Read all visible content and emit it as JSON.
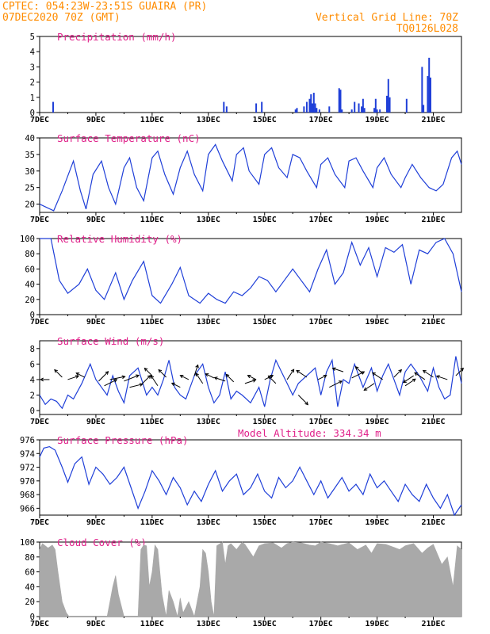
{
  "header": {
    "line1": "CPTEC:   054:23W-23:51S   GUAIRA (PR)",
    "line2": "07DEC2020 70Z (GMT)",
    "grid_label": "Vertical Grid Line: 70Z",
    "code": "TQ0126L028"
  },
  "colors": {
    "header": "#ff8c00",
    "title": "#e0218a",
    "line": "#1f3fd8",
    "cloud": "#a9a9a9"
  },
  "chart_data": [
    {
      "id": "precip",
      "type": "bar",
      "title": "Precipitation (mm/h)",
      "ylim": [
        0,
        5
      ],
      "yticks": [
        "0",
        "1",
        "2",
        "3",
        "4",
        "5"
      ],
      "xlim": [
        0,
        15
      ],
      "xticks": [
        "7DEC",
        "9DEC",
        "11DEC",
        "13DEC",
        "15DEC",
        "17DEC",
        "19DEC",
        "21DEC"
      ],
      "x": [
        0.48,
        6.55,
        6.65,
        7.7,
        7.9,
        9.1,
        9.15,
        9.4,
        9.5,
        9.6,
        9.65,
        9.7,
        9.75,
        9.8,
        9.85,
        9.95,
        10.3,
        10.65,
        10.7,
        10.75,
        11.1,
        11.2,
        11.35,
        11.45,
        11.5,
        11.55,
        11.9,
        11.95,
        12.0,
        12.1,
        12.35,
        12.4,
        12.45,
        13.05,
        13.6,
        13.65,
        13.8,
        13.85,
        13.9
      ],
      "values": [
        0.7,
        0.7,
        0.4,
        0.6,
        0.7,
        0.2,
        0.3,
        0.4,
        0.7,
        0.9,
        1.2,
        0.6,
        1.3,
        0.6,
        0.3,
        0.2,
        0.4,
        1.6,
        1.5,
        0.2,
        0.2,
        0.7,
        0.6,
        0.4,
        0.9,
        0.3,
        0.3,
        0.9,
        0.2,
        0.2,
        1.1,
        2.2,
        1.0,
        0.9,
        3.0,
        0.5,
        2.4,
        3.6,
        2.3
      ]
    },
    {
      "id": "temp",
      "type": "line",
      "title": "Surface Temperature (nC)",
      "ylim": [
        17.5,
        40
      ],
      "yticks": [
        "20",
        "25",
        "30",
        "35",
        "40"
      ],
      "xlim": [
        0,
        15
      ],
      "xticks": [
        "7DEC",
        "9DEC",
        "11DEC",
        "13DEC",
        "15DEC",
        "17DEC",
        "19DEC",
        "21DEC"
      ],
      "x": [
        0.0,
        0.5,
        0.8,
        1.2,
        1.45,
        1.65,
        1.9,
        2.2,
        2.45,
        2.7,
        3.0,
        3.2,
        3.45,
        3.7,
        4.0,
        4.2,
        4.45,
        4.75,
        5.0,
        5.25,
        5.5,
        5.8,
        6.0,
        6.25,
        6.5,
        6.85,
        7.0,
        7.25,
        7.45,
        7.8,
        8.0,
        8.25,
        8.5,
        8.8,
        9.0,
        9.25,
        9.5,
        9.85,
        10.0,
        10.25,
        10.5,
        10.85,
        11.0,
        11.25,
        11.5,
        11.85,
        12.0,
        12.25,
        12.5,
        12.85,
        13.0,
        13.25,
        13.55,
        13.85,
        14.1,
        14.35,
        14.65,
        14.85,
        15.0
      ],
      "values": [
        20,
        18,
        24,
        33,
        24,
        18.5,
        29,
        33,
        25,
        20,
        31,
        34,
        25,
        21,
        34,
        36,
        29,
        23,
        31,
        36,
        29,
        24,
        35,
        38,
        33,
        27,
        35,
        37,
        30,
        26,
        35,
        37,
        31,
        28,
        35,
        34,
        30,
        25,
        32,
        34,
        29,
        25,
        33,
        34,
        30,
        25,
        31,
        34,
        29,
        25,
        28,
        32,
        28,
        25,
        24,
        26,
        34,
        36,
        32
      ]
    },
    {
      "id": "rh",
      "type": "line",
      "title": "Relative Humidity (%)",
      "ylim": [
        0,
        100
      ],
      "yticks": [
        "0",
        "20",
        "40",
        "60",
        "80",
        "100"
      ],
      "xlim": [
        0,
        15
      ],
      "xticks": [
        "7DEC",
        "9DEC",
        "11DEC",
        "13DEC",
        "15DEC",
        "17DEC",
        "19DEC",
        "21DEC"
      ],
      "x": [
        0.0,
        0.4,
        0.7,
        1.0,
        1.4,
        1.7,
        2.0,
        2.3,
        2.7,
        3.0,
        3.3,
        3.7,
        4.0,
        4.3,
        4.7,
        5.0,
        5.3,
        5.7,
        6.0,
        6.3,
        6.6,
        6.9,
        7.2,
        7.5,
        7.8,
        8.1,
        8.4,
        8.7,
        9.0,
        9.3,
        9.6,
        9.9,
        10.2,
        10.5,
        10.8,
        11.1,
        11.4,
        11.7,
        12.0,
        12.3,
        12.6,
        12.9,
        13.2,
        13.5,
        13.8,
        14.1,
        14.4,
        14.7,
        15.0
      ],
      "values": [
        100,
        100,
        45,
        28,
        40,
        60,
        32,
        20,
        55,
        20,
        45,
        70,
        25,
        15,
        40,
        62,
        25,
        15,
        28,
        20,
        15,
        30,
        25,
        35,
        50,
        45,
        30,
        45,
        60,
        45,
        30,
        60,
        85,
        40,
        55,
        95,
        65,
        88,
        50,
        88,
        82,
        92,
        40,
        85,
        80,
        95,
        100,
        80,
        30
      ]
    },
    {
      "id": "wind",
      "type": "line",
      "title": "Surface Wind (m/s)",
      "ylim": [
        -0.5,
        9
      ],
      "yticks": [
        "0",
        "2",
        "4",
        "6",
        "8"
      ],
      "xlim": [
        0,
        15
      ],
      "xticks": [
        "7DEC",
        "9DEC",
        "11DEC",
        "13DEC",
        "15DEC",
        "17DEC",
        "19DEC",
        "21DEC"
      ],
      "x": [
        0.0,
        0.2,
        0.4,
        0.6,
        0.8,
        1.0,
        1.2,
        1.5,
        1.8,
        2.0,
        2.2,
        2.4,
        2.6,
        2.8,
        3.0,
        3.2,
        3.5,
        3.8,
        4.0,
        4.2,
        4.4,
        4.6,
        4.8,
        5.0,
        5.2,
        5.5,
        5.8,
        6.0,
        6.2,
        6.4,
        6.6,
        6.8,
        7.0,
        7.2,
        7.5,
        7.8,
        8.0,
        8.2,
        8.4,
        8.6,
        8.8,
        9.0,
        9.2,
        9.5,
        9.8,
        10.0,
        10.2,
        10.4,
        10.6,
        10.8,
        11.0,
        11.2,
        11.5,
        11.8,
        12.0,
        12.2,
        12.4,
        12.6,
        12.8,
        13.0,
        13.2,
        13.5,
        13.8,
        14.0,
        14.2,
        14.4,
        14.6,
        14.8,
        15.0
      ],
      "values": [
        2.0,
        0.8,
        1.5,
        1.2,
        0.3,
        2.0,
        1.5,
        3.5,
        6.0,
        4.0,
        3.0,
        2.0,
        4.5,
        2.5,
        1.0,
        4.5,
        5.5,
        2.0,
        3.0,
        2.0,
        4.0,
        6.5,
        3.0,
        2.0,
        1.5,
        4.5,
        6.0,
        3.0,
        1.0,
        2.0,
        5.0,
        1.5,
        2.5,
        2.0,
        1.0,
        3.0,
        0.5,
        4.0,
        6.5,
        5.0,
        3.5,
        2.0,
        3.5,
        4.5,
        5.5,
        2.0,
        5.0,
        6.5,
        0.5,
        4.0,
        3.5,
        6.0,
        3.0,
        5.5,
        2.5,
        4.5,
        6.0,
        4.0,
        2.0,
        5.0,
        6.0,
        4.5,
        2.5,
        5.5,
        3.0,
        1.5,
        2.0,
        7.0,
        3.5
      ]
    },
    {
      "id": "pressure",
      "type": "line",
      "title": "Surface Pressure (hPa)",
      "annotation": "Model Altitude: 334.34 m",
      "ylim": [
        965,
        976
      ],
      "yticks": [
        "966",
        "968",
        "970",
        "972",
        "974",
        "976"
      ],
      "xlim": [
        0,
        15
      ],
      "xticks": [
        "7DEC",
        "9DEC",
        "11DEC",
        "13DEC",
        "15DEC",
        "17DEC",
        "19DEC",
        "21DEC"
      ],
      "x": [
        0.0,
        0.15,
        0.35,
        0.55,
        0.8,
        1.0,
        1.25,
        1.5,
        1.75,
        2.0,
        2.25,
        2.5,
        2.75,
        3.0,
        3.25,
        3.5,
        3.75,
        4.0,
        4.25,
        4.5,
        4.75,
        5.0,
        5.25,
        5.5,
        5.75,
        6.0,
        6.25,
        6.5,
        6.75,
        7.0,
        7.25,
        7.5,
        7.75,
        8.0,
        8.25,
        8.5,
        8.75,
        9.0,
        9.25,
        9.5,
        9.75,
        10.0,
        10.25,
        10.5,
        10.75,
        11.0,
        11.25,
        11.5,
        11.75,
        12.0,
        12.25,
        12.5,
        12.75,
        13.0,
        13.25,
        13.5,
        13.75,
        14.0,
        14.25,
        14.5,
        14.75,
        15.0
      ],
      "values": [
        973.5,
        974.8,
        975.0,
        974.5,
        972.0,
        969.8,
        972.5,
        973.5,
        969.5,
        972.0,
        971.0,
        969.5,
        970.5,
        972.0,
        969.0,
        966.0,
        968.5,
        971.5,
        970.0,
        968.0,
        970.5,
        969.0,
        966.5,
        968.5,
        967.0,
        969.5,
        971.5,
        968.5,
        970.0,
        971.0,
        968.0,
        969.0,
        971.0,
        968.5,
        967.5,
        970.5,
        969.0,
        970.0,
        972.0,
        970.0,
        968.0,
        970.0,
        967.5,
        969.0,
        970.5,
        968.5,
        969.5,
        968.0,
        971.0,
        969.0,
        970.0,
        968.5,
        967.0,
        969.5,
        968.0,
        967.0,
        969.5,
        967.5,
        966.0,
        968.0,
        965.0,
        966.5
      ]
    },
    {
      "id": "cloud",
      "type": "area",
      "title": "Cloud Cover (%)",
      "ylim": [
        0,
        100
      ],
      "yticks": [
        "0",
        "20",
        "40",
        "60",
        "80",
        "100"
      ],
      "xlim": [
        0,
        15
      ],
      "xticks": [
        "7DEC",
        "9DEC",
        "11DEC",
        "13DEC",
        "15DEC",
        "17DEC",
        "19DEC",
        "21DEC"
      ],
      "x": [
        0.0,
        0.1,
        0.2,
        0.3,
        0.45,
        0.55,
        0.65,
        0.8,
        0.95,
        1.05,
        1.2,
        1.35,
        2.4,
        2.5,
        2.6,
        2.7,
        2.8,
        3.0,
        3.1,
        3.5,
        3.6,
        3.7,
        3.8,
        3.9,
        4.0,
        4.1,
        4.2,
        4.35,
        4.5,
        4.6,
        4.75,
        4.9,
        5.0,
        5.1,
        5.3,
        5.5,
        5.7,
        5.8,
        5.9,
        6.0,
        6.1,
        6.2,
        6.3,
        6.5,
        6.6,
        6.7,
        6.8,
        7.0,
        7.2,
        7.3,
        7.6,
        7.8,
        8.0,
        8.3,
        8.6,
        8.8,
        9.0,
        9.3,
        9.6,
        9.8,
        10.0,
        10.3,
        10.6,
        10.8,
        11.0,
        11.3,
        11.6,
        11.8,
        12.0,
        12.3,
        12.6,
        12.8,
        13.0,
        13.3,
        13.6,
        13.8,
        14.0,
        14.3,
        14.5,
        14.7,
        14.85,
        15.0
      ],
      "values": [
        90,
        98,
        95,
        92,
        96,
        90,
        60,
        20,
        5,
        0,
        0,
        0,
        0,
        20,
        40,
        55,
        30,
        0,
        0,
        0,
        90,
        96,
        95,
        40,
        60,
        96,
        90,
        30,
        0,
        35,
        20,
        0,
        25,
        5,
        20,
        0,
        40,
        90,
        85,
        60,
        20,
        0,
        95,
        100,
        70,
        95,
        98,
        90,
        100,
        97,
        80,
        95,
        98,
        99,
        92,
        98,
        100,
        99,
        96,
        95,
        100,
        98,
        95,
        97,
        99,
        90,
        96,
        85,
        98,
        97,
        93,
        90,
        95,
        98,
        85,
        92,
        97,
        70,
        80,
        40,
        95,
        90
      ]
    }
  ],
  "wind_arrows": {
    "x": [
      0.35,
      0.8,
      1.0,
      1.6,
      2.1,
      2.3,
      2.5,
      3.0,
      3.2,
      3.6,
      4.0,
      4.2,
      4.5,
      5.0,
      5.3,
      5.5,
      5.8,
      6.2,
      6.6,
      6.9,
      7.3,
      7.7,
      8.0,
      8.4,
      8.8,
      9.2,
      9.5,
      9.9,
      10.3,
      10.8,
      11.1,
      11.5,
      11.9,
      12.2,
      12.6,
      13.0,
      13.3,
      13.7,
      14.0,
      14.5,
      14.8
    ],
    "y": [
      4.0,
      4.3,
      4.0,
      4.3,
      3.8,
      3.2,
      4.0,
      3.8,
      3.0,
      3.3,
      4.5,
      3.2,
      4.3,
      3.0,
      4.0,
      4.5,
      3.5,
      4.2,
      3.8,
      3.7,
      3.5,
      4.0,
      4.0,
      3.5,
      4.0,
      2.0,
      4.3,
      4.0,
      3.0,
      5.0,
      4.2,
      4.7,
      3.5,
      4.0,
      4.3,
      3.2,
      4.5,
      4.0,
      4.3,
      4.0,
      4.5
    ],
    "u": [
      -2,
      -2,
      3,
      -2,
      3,
      4,
      5,
      5,
      4,
      3,
      -2,
      -2,
      -2,
      -2,
      -2,
      1,
      -2,
      -2,
      -3,
      -2,
      3,
      -2,
      2,
      -2,
      2,
      3,
      -3,
      2,
      4,
      -3,
      4,
      -2,
      -3,
      -3,
      2,
      3,
      -3,
      -3,
      -3,
      -3,
      2
    ],
    "v": [
      0,
      2,
      1,
      1,
      3,
      2,
      1,
      2,
      1,
      3,
      2,
      3,
      2,
      1,
      1,
      3,
      3,
      1,
      1,
      2,
      1,
      1,
      1,
      2,
      3,
      -3,
      2,
      1,
      2,
      1,
      2,
      2,
      -2,
      2,
      2,
      2,
      -2,
      2,
      2,
      1,
      2
    ]
  }
}
